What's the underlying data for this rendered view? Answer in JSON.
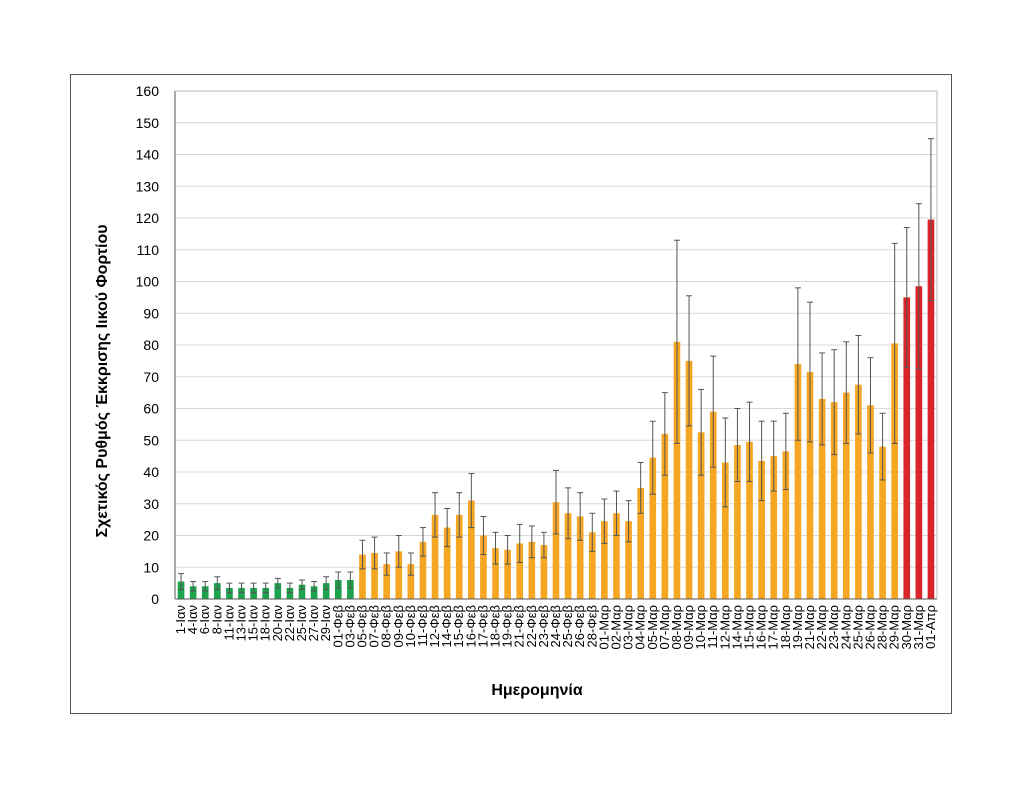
{
  "chart_data": {
    "type": "bar",
    "xlabel": "Ημερομηνία",
    "ylabel": "Σχετικός Ρυθμός Έκκρισης Ιικού Φορτίου",
    "ylim": [
      0,
      160
    ],
    "yticks": [
      0,
      10,
      20,
      30,
      40,
      50,
      60,
      70,
      80,
      90,
      100,
      110,
      120,
      130,
      140,
      150,
      160
    ],
    "grid": true,
    "colors": {
      "green": "#1ea34d",
      "orange": "#f5a623",
      "red": "#d9242a",
      "error": "#555555",
      "grid": "#d9d9d9"
    },
    "categories": [
      "1-Ιαν",
      "4-Ιαν",
      "6-Ιαν",
      "8-Ιαν",
      "11-Ιαν",
      "13-Ιαν",
      "15-Ιαν",
      "18-Ιαν",
      "20-Ιαν",
      "22-Ιαν",
      "25-Ιαν",
      "27-Ιαν",
      "29-Ιαν",
      "01-Φεβ",
      "03-Φεβ",
      "05-Φεβ",
      "07-Φεβ",
      "08-Φεβ",
      "09-Φεβ",
      "10-Φεβ",
      "11-Φεβ",
      "12-Φεβ",
      "14-Φεβ",
      "15-Φεβ",
      "16-Φεβ",
      "17-Φεβ",
      "18-Φεβ",
      "19-Φεβ",
      "21-Φεβ",
      "22-Φεβ",
      "23-Φεβ",
      "24-Φεβ",
      "25-Φεβ",
      "26-Φεβ",
      "28-Φεβ",
      "01-Μαρ",
      "02-Μαρ",
      "03-Μαρ",
      "04-Μαρ",
      "05-Μαρ",
      "07-Μαρ",
      "08-Μαρ",
      "09-Μαρ",
      "10-Μαρ",
      "11-Μαρ",
      "12-Μαρ",
      "14-Μαρ",
      "15-Μαρ",
      "16-Μαρ",
      "17-Μαρ",
      "18-Μαρ",
      "19-Μαρ",
      "21-Μαρ",
      "22-Μαρ",
      "23-Μαρ",
      "24-Μαρ",
      "25-Μαρ",
      "26-Μαρ",
      "28-Μαρ",
      "29-Μαρ",
      "30-Μαρ",
      "31-Μαρ",
      "01-Απρ"
    ],
    "values": [
      5.5,
      4,
      4,
      5,
      3.5,
      3.5,
      3.5,
      3.5,
      5,
      3.5,
      4.5,
      4,
      5,
      6,
      6,
      14,
      14.5,
      11,
      15,
      11,
      18,
      26.5,
      22.5,
      26.5,
      31,
      20,
      16,
      15.5,
      17.5,
      18,
      17,
      30.5,
      27,
      26,
      21,
      24.5,
      27,
      24.5,
      35,
      44.5,
      52,
      81,
      75,
      52.5,
      59,
      43,
      48.5,
      49.5,
      43.5,
      45,
      46.5,
      74,
      71.5,
      63,
      62,
      65,
      67.5,
      61,
      48,
      80.5,
      95,
      98.5,
      119.5
    ],
    "errors": [
      2.5,
      1.5,
      1.5,
      2,
      1.5,
      1.5,
      1.5,
      1.5,
      1.5,
      1.5,
      1.5,
      1.5,
      2,
      2.5,
      2.5,
      4.5,
      5,
      3.5,
      5,
      3.5,
      4.5,
      7,
      6,
      7,
      8.5,
      6,
      5,
      4.5,
      6,
      5,
      4,
      10,
      8,
      7.5,
      6,
      7,
      7,
      6.5,
      8,
      11.5,
      13,
      32,
      20.5,
      13.5,
      17.5,
      14,
      11.5,
      12.5,
      12.5,
      11,
      12,
      24,
      22,
      14.5,
      16.5,
      16,
      15.5,
      15,
      10.5,
      31.5,
      22,
      26,
      25.5
    ],
    "groups": [
      "green",
      "green",
      "green",
      "green",
      "green",
      "green",
      "green",
      "green",
      "green",
      "green",
      "green",
      "green",
      "green",
      "green",
      "green",
      "orange",
      "orange",
      "orange",
      "orange",
      "orange",
      "orange",
      "orange",
      "orange",
      "orange",
      "orange",
      "orange",
      "orange",
      "orange",
      "orange",
      "orange",
      "orange",
      "orange",
      "orange",
      "orange",
      "orange",
      "orange",
      "orange",
      "orange",
      "orange",
      "orange",
      "orange",
      "orange",
      "orange",
      "orange",
      "orange",
      "orange",
      "orange",
      "orange",
      "orange",
      "orange",
      "orange",
      "orange",
      "orange",
      "orange",
      "orange",
      "orange",
      "orange",
      "orange",
      "orange",
      "orange",
      "red",
      "red",
      "red"
    ]
  }
}
